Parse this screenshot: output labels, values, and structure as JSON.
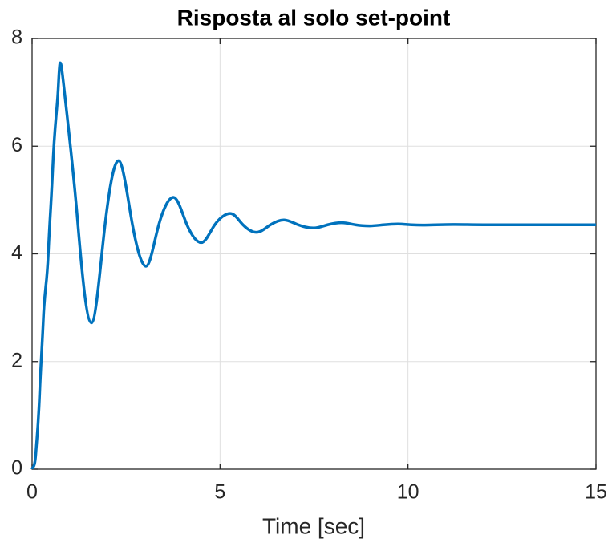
{
  "chart_data": {
    "type": "line",
    "title": "Risposta al solo set-point",
    "xlabel": "Time [sec]",
    "xlim": [
      0,
      15
    ],
    "ylim": [
      0,
      8
    ],
    "xticks": [
      0,
      5,
      10,
      15
    ],
    "yticks": [
      0,
      2,
      4,
      6,
      8
    ],
    "grid": true,
    "x": [
      0,
      0.1,
      0.2,
      0.3,
      0.43,
      0.55,
      0.68,
      0.81,
      1.22,
      1.58,
      1.94,
      2.3,
      2.67,
      3.03,
      3.37,
      3.76,
      4.12,
      4.5,
      4.86,
      5.27,
      5.61,
      5.97,
      6.34,
      6.7,
      7.08,
      7.49,
      7.86,
      8.24,
      8.6,
      8.98,
      9.35,
      9.73,
      10.1,
      10.45,
      11.2,
      12,
      13.5,
      15
    ],
    "series": [
      {
        "color": "#0072bd",
        "values": [
          0,
          0.3,
          1.4,
          2.8,
          4.0,
          5.6,
          6.9,
          7.32,
          4.54,
          2.72,
          4.54,
          5.73,
          4.54,
          3.77,
          4.54,
          5.05,
          4.54,
          4.21,
          4.54,
          4.75,
          4.54,
          4.4,
          4.54,
          4.63,
          4.54,
          4.48,
          4.54,
          4.58,
          4.54,
          4.52,
          4.54,
          4.555,
          4.54,
          4.535,
          4.545,
          4.54,
          4.54,
          4.54
        ]
      }
    ]
  }
}
